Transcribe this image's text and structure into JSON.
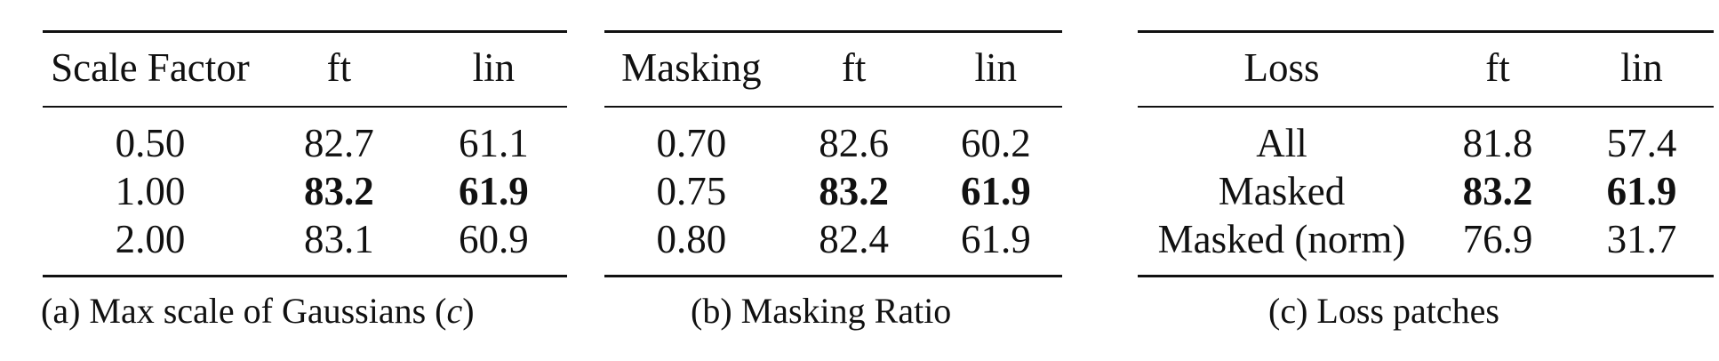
{
  "tables": [
    {
      "headers": [
        "Scale Factor",
        "ft",
        "lin"
      ],
      "rows": [
        {
          "label": "0.50",
          "ft": "82.7",
          "lin": "61.1"
        },
        {
          "label": "1.00",
          "ft": "83.2",
          "lin": "61.9"
        },
        {
          "label": "2.00",
          "ft": "83.1",
          "lin": "60.9"
        }
      ],
      "caption_prefix": "(a) Max scale of Gaussians (",
      "caption_var": "c",
      "caption_suffix": ")"
    },
    {
      "headers": [
        "Masking",
        "ft",
        "lin"
      ],
      "rows": [
        {
          "label": "0.70",
          "ft": "82.6",
          "lin": "60.2"
        },
        {
          "label": "0.75",
          "ft": "83.2",
          "lin": "61.9"
        },
        {
          "label": "0.80",
          "ft": "82.4",
          "lin": "61.9"
        }
      ],
      "caption": "(b) Masking Ratio"
    },
    {
      "headers": [
        "Loss",
        "ft",
        "lin"
      ],
      "rows": [
        {
          "label": "All",
          "ft": "81.8",
          "lin": "57.4"
        },
        {
          "label": "Masked",
          "ft": "83.2",
          "lin": "61.9"
        },
        {
          "label": "Masked (norm)",
          "ft": "76.9",
          "lin": "31.7"
        }
      ],
      "caption": "(c) Loss patches"
    }
  ]
}
